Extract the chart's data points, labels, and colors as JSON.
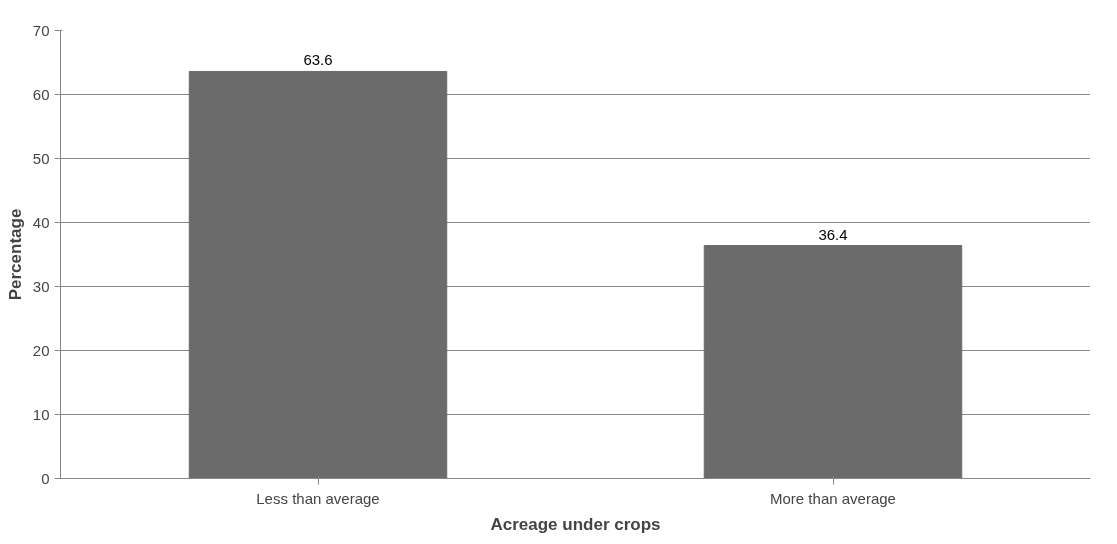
{
  "chart_data": {
    "type": "bar",
    "xlabel": "Acreage under crops",
    "ylabel": "Percentage",
    "categories": [
      "Less than average",
      "More than average"
    ],
    "values": [
      63.6,
      36.4
    ],
    "color": "#6b6b6b",
    "ylim": [
      0,
      70
    ],
    "yticks": [
      0,
      10,
      20,
      30,
      40,
      50,
      60,
      70
    ],
    "grid": "y",
    "data_labels": true
  }
}
